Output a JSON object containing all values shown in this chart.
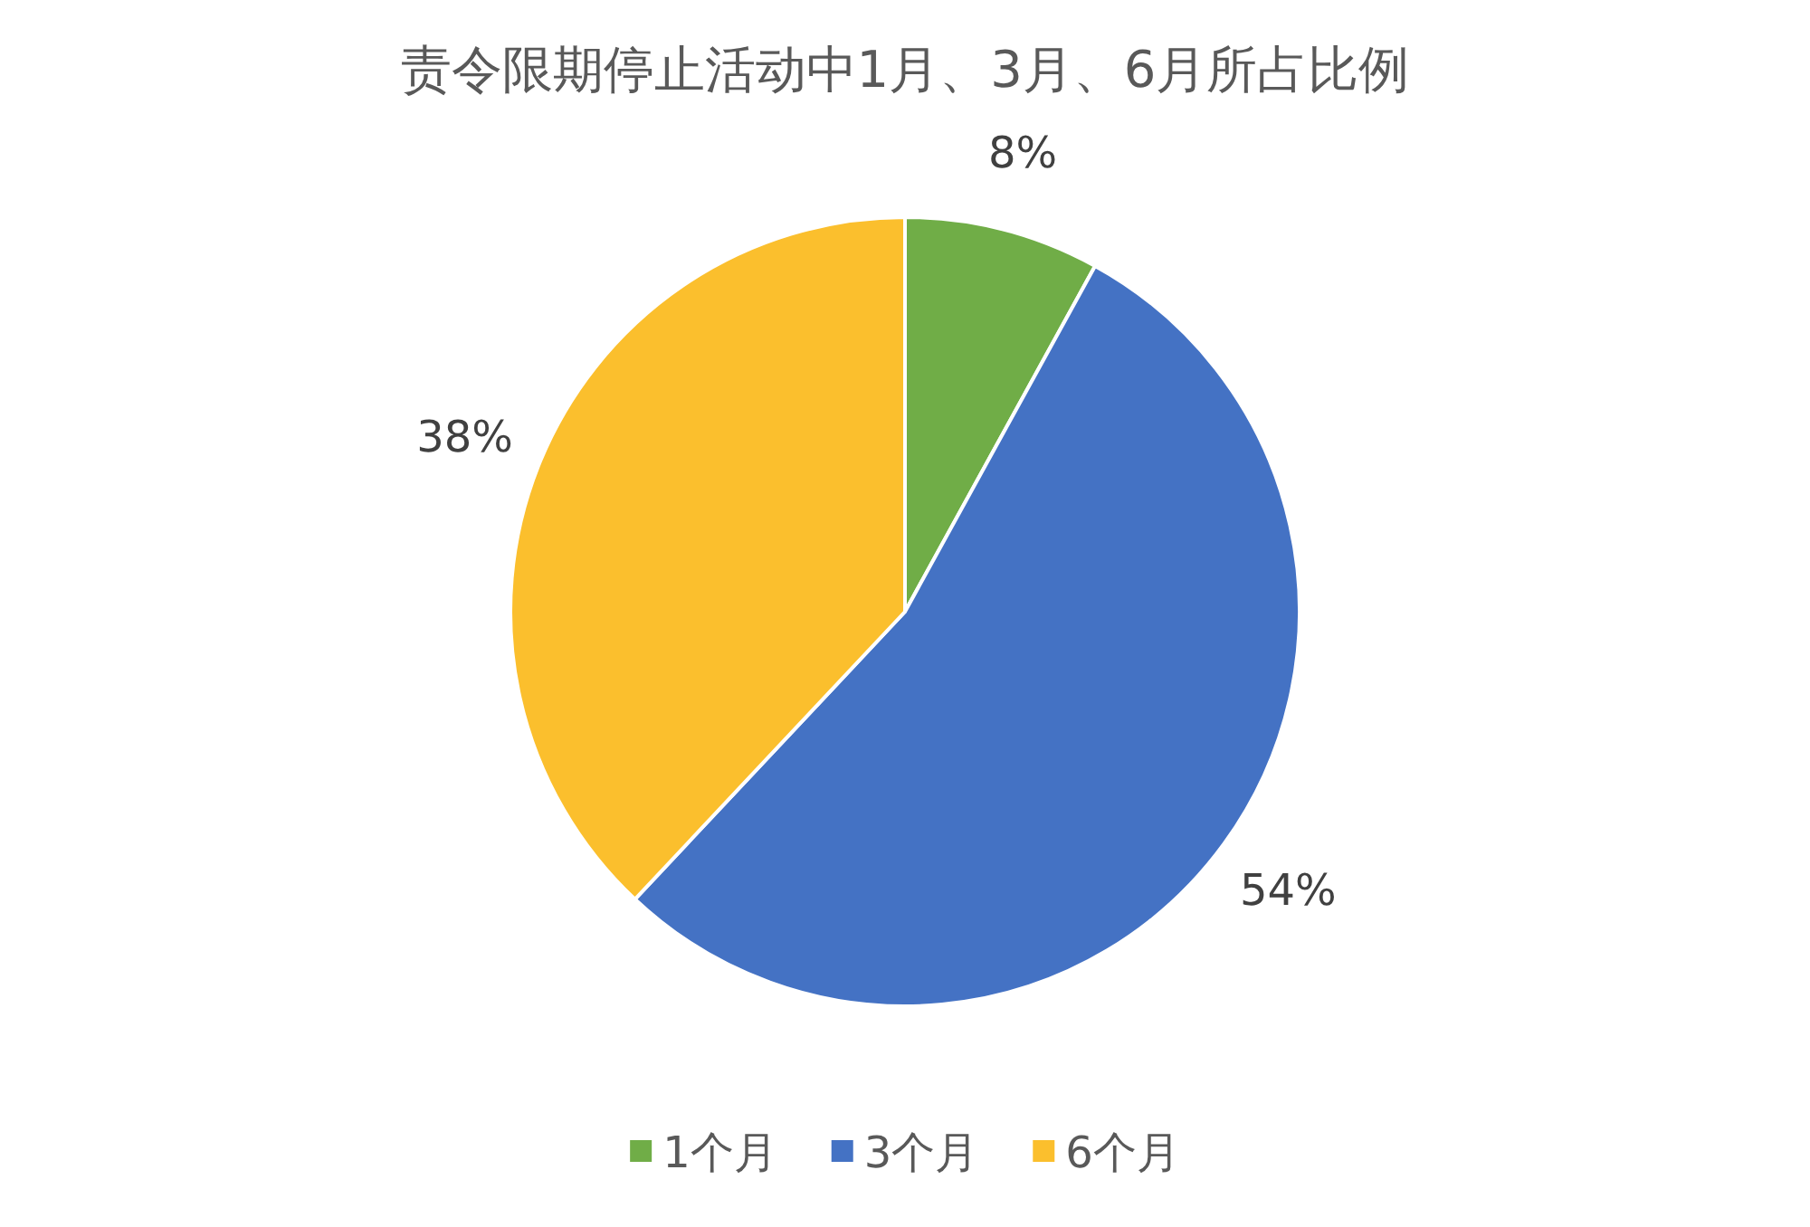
{
  "chart_data": {
    "type": "pie",
    "title": "责令限期停止活动中1月、3月、6月所占比例",
    "categories": [
      "1个月",
      "3个月",
      "6个月"
    ],
    "values": [
      8,
      54,
      38
    ],
    "colors": [
      "#70ad47",
      "#4472c4",
      "#fbbf2d"
    ],
    "value_labels": [
      "8%",
      "54%",
      "38%"
    ],
    "legend": "bottom"
  }
}
